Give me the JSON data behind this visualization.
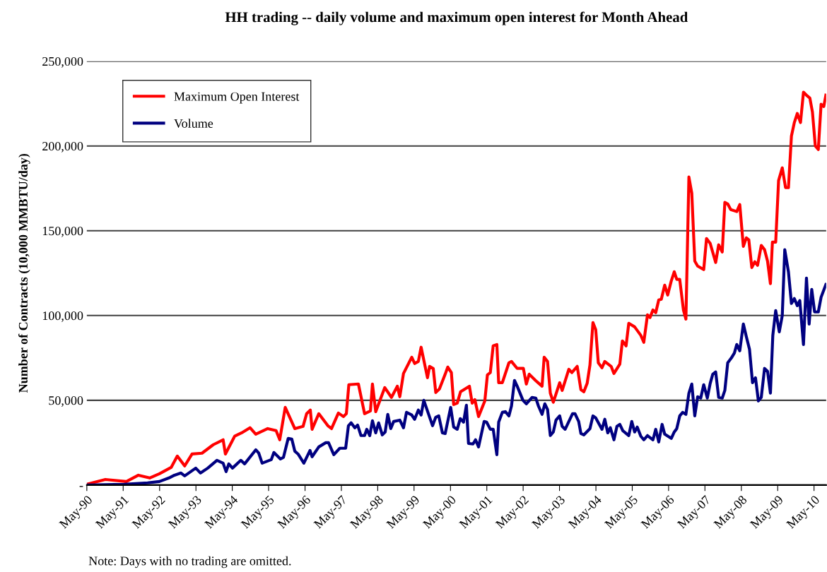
{
  "chart_data": {
    "type": "line",
    "title": "HH trading -- daily volume and maximum open interest for Month Ahead",
    "ylabel": "Number of Contracts (10,000 MMBTU/day)",
    "annotations": [
      "Note: Days with no trading are omitted."
    ],
    "xlim": [
      "1990-05-01",
      "2010-08-31"
    ],
    "ylim": [
      0,
      250000
    ],
    "xticks": [
      {
        "value": "1990-05-01",
        "label": "May-90"
      },
      {
        "value": "1991-05-01",
        "label": "May-91"
      },
      {
        "value": "1992-05-01",
        "label": "May-92"
      },
      {
        "value": "1993-05-01",
        "label": "May-93"
      },
      {
        "value": "1994-05-01",
        "label": "May-94"
      },
      {
        "value": "1995-05-01",
        "label": "May-95"
      },
      {
        "value": "1996-05-01",
        "label": "May-96"
      },
      {
        "value": "1997-05-01",
        "label": "May-97"
      },
      {
        "value": "1998-05-01",
        "label": "May-98"
      },
      {
        "value": "1999-05-01",
        "label": "May-99"
      },
      {
        "value": "2000-05-01",
        "label": "May-00"
      },
      {
        "value": "2001-05-01",
        "label": "May-01"
      },
      {
        "value": "2002-05-01",
        "label": "May-02"
      },
      {
        "value": "2003-05-01",
        "label": "May-03"
      },
      {
        "value": "2004-05-01",
        "label": "May-04"
      },
      {
        "value": "2005-05-01",
        "label": "May-05"
      },
      {
        "value": "2006-05-01",
        "label": "May-06"
      },
      {
        "value": "2007-05-01",
        "label": "May-07"
      },
      {
        "value": "2008-05-01",
        "label": "May-08"
      },
      {
        "value": "2009-05-01",
        "label": "May-09"
      },
      {
        "value": "2010-05-01",
        "label": "May-10"
      }
    ],
    "yticks": [
      {
        "value": 0,
        "label": "-"
      },
      {
        "value": 50000,
        "label": "50,000"
      },
      {
        "value": 100000,
        "label": "100,000"
      },
      {
        "value": 150000,
        "label": "150,000"
      },
      {
        "value": 200000,
        "label": "200,000"
      },
      {
        "value": 250000,
        "label": "250,000"
      }
    ],
    "grid": "y",
    "legend": "top left",
    "marker": "none",
    "line_style": "solid",
    "series": [
      {
        "name": "Maximum Open Interest",
        "color": "#ff0000",
        "x": [
          "1990-05-01",
          "1990-11-03",
          "1991-06-02",
          "1991-10-01",
          "1992-01-22",
          "1992-04-29",
          "1992-08-25",
          "1992-10-26",
          "1993-01-08",
          "1993-03-23",
          "1993-07-01",
          "1993-10-22",
          "1994-01-29",
          "1994-02-21",
          "1994-05-25",
          "1994-08-03",
          "1994-10-26",
          "1994-12-23",
          "1995-04-22",
          "1995-07-15",
          "1995-08-21",
          "1995-10-15",
          "1996-01-19",
          "1996-04-11",
          "1996-05-17",
          "1996-06-23",
          "1996-07-11",
          "1996-09-16",
          "1996-12-16",
          "1997-01-22",
          "1997-04-01",
          "1997-05-21",
          "1997-06-20",
          "1997-07-15",
          "1997-10-19",
          "1997-12-20",
          "1998-02-17",
          "1998-03-09",
          "1998-04-11",
          "1998-07-11",
          "1998-09-16",
          "1998-11-14",
          "1998-12-09",
          "1999-01-15",
          "1999-04-08",
          "1999-05-07",
          "1999-06-13",
          "1999-07-11",
          "1999-09-13",
          "1999-10-04",
          "1999-11-10",
          "1999-12-05",
          "2000-01-11",
          "2000-03-09",
          "2000-04-04",
          "2000-05-10",
          "2000-06-02",
          "2000-07-08",
          "2000-08-10",
          "2000-11-07",
          "2000-12-05",
          "2001-01-01",
          "2001-02-07",
          "2001-04-11",
          "2001-05-07",
          "2001-06-05",
          "2001-07-04",
          "2001-08-10",
          "2001-08-28",
          "2001-10-04",
          "2001-12-09",
          "2002-01-04",
          "2002-03-02",
          "2002-05-03",
          "2002-06-02",
          "2002-07-01",
          "2002-09-02",
          "2002-11-07",
          "2002-11-28",
          "2003-01-01",
          "2003-01-29",
          "2003-02-28",
          "2003-05-03",
          "2003-05-28",
          "2003-08-03",
          "2003-09-02",
          "2003-10-26",
          "2003-12-02",
          "2004-01-01",
          "2004-02-03",
          "2004-03-02",
          "2004-04-01",
          "2004-04-29",
          "2004-05-25",
          "2004-07-01",
          "2004-07-29",
          "2004-10-01",
          "2004-10-29",
          "2004-12-27",
          "2005-01-22",
          "2005-02-28",
          "2005-03-27",
          "2005-05-25",
          "2005-07-26",
          "2005-08-25",
          "2005-10-01",
          "2005-10-26",
          "2005-11-25",
          "2005-12-23",
          "2006-01-22",
          "2006-02-17",
          "2006-03-23",
          "2006-04-22",
          "2006-05-28",
          "2006-06-27",
          "2006-07-22",
          "2006-08-21",
          "2006-09-27",
          "2006-10-22",
          "2006-11-21",
          "2006-12-20",
          "2007-01-19",
          "2007-02-17",
          "2007-04-19",
          "2007-05-17",
          "2007-06-23",
          "2007-08-17",
          "2007-09-16",
          "2007-10-22",
          "2007-11-17",
          "2007-12-16",
          "2008-01-15",
          "2008-03-16",
          "2008-04-15",
          "2008-05-21",
          "2008-06-20",
          "2008-07-15",
          "2008-08-14",
          "2008-09-13",
          "2008-10-11",
          "2008-11-17",
          "2008-12-20",
          "2009-01-19",
          "2009-02-17",
          "2009-03-09",
          "2009-04-11",
          "2009-05-10",
          "2009-06-16",
          "2009-07-19",
          "2009-08-17",
          "2009-09-16",
          "2009-10-15",
          "2009-11-14",
          "2009-12-16",
          "2010-01-15",
          "2010-02-21",
          "2010-03-20",
          "2010-04-15",
          "2010-05-14",
          "2010-06-13",
          "2010-07-11",
          "2010-08-07",
          "2010-08-28"
        ],
        "values": [
          500,
          3300,
          2100,
          5800,
          4200,
          6700,
          10400,
          17100,
          11300,
          18300,
          18800,
          23800,
          26700,
          18300,
          28800,
          30800,
          33800,
          30000,
          33300,
          32100,
          26700,
          45800,
          33300,
          34600,
          42100,
          44200,
          32900,
          42100,
          35000,
          33300,
          42500,
          40400,
          42100,
          59200,
          59600,
          42100,
          43700,
          59600,
          43300,
          57500,
          51700,
          58300,
          52100,
          65800,
          75400,
          71700,
          72900,
          81300,
          63300,
          70000,
          68800,
          54600,
          56700,
          65400,
          69600,
          66300,
          47500,
          48300,
          55000,
          58300,
          48300,
          50400,
          40400,
          49600,
          65000,
          66300,
          82100,
          82900,
          60400,
          60400,
          72100,
          72900,
          68800,
          68800,
          59600,
          65400,
          61700,
          58300,
          75400,
          72900,
          54200,
          48800,
          60400,
          55800,
          68300,
          66300,
          70000,
          56300,
          55000,
          60000,
          70800,
          95800,
          91700,
          72100,
          69200,
          72900,
          70000,
          65800,
          71300,
          85000,
          82100,
          95400,
          93300,
          88300,
          84200,
          100400,
          98800,
          103300,
          101700,
          109200,
          109600,
          117900,
          112100,
          120400,
          125800,
          121300,
          121300,
          103300,
          97900,
          181700,
          172100,
          132100,
          129200,
          127100,
          145400,
          142500,
          131300,
          141700,
          137500,
          166700,
          165800,
          162500,
          161300,
          165400,
          140800,
          145800,
          144600,
          128300,
          131700,
          129600,
          141300,
          138800,
          132100,
          118800,
          143300,
          143300,
          179600,
          187100,
          175400,
          175400,
          205800,
          213800,
          219200,
          213800,
          231700,
          229600,
          228300,
          220000,
          200000,
          197900,
          224600,
          223300,
          230000
        ]
      },
      {
        "name": "Volume",
        "color": "#000080",
        "x": [
          "1990-05-01",
          "1991-05-10",
          "1992-01-01",
          "1992-04-29",
          "1992-08-03",
          "1992-09-27",
          "1992-12-02",
          "1993-01-08",
          "1993-04-29",
          "1993-06-16",
          "1993-08-28",
          "1993-11-28",
          "1994-01-29",
          "1994-02-28",
          "1994-03-27",
          "1994-05-03",
          "1994-07-26",
          "1994-09-02",
          "1994-12-23",
          "1995-01-22",
          "1995-02-25",
          "1995-05-28",
          "1995-06-23",
          "1995-08-28",
          "1995-09-27",
          "1995-11-14",
          "1995-12-20",
          "1996-01-19",
          "1996-02-21",
          "1996-04-19",
          "1996-06-20",
          "1996-07-11",
          "1996-09-16",
          "1996-11-25",
          "1996-12-23",
          "1997-02-14",
          "1997-04-15",
          "1997-06-13",
          "1997-07-11",
          "1997-08-07",
          "1997-09-13",
          "1997-10-11",
          "1997-11-14",
          "1997-12-20",
          "1998-01-11",
          "1998-02-10",
          "1998-03-09",
          "1998-04-11",
          "1998-05-10",
          "1998-06-16",
          "1998-07-15",
          "1998-08-10",
          "1998-09-09",
          "1998-10-08",
          "1998-12-09",
          "1999-01-15",
          "1999-02-14",
          "1999-04-08",
          "1999-05-07",
          "1999-06-13",
          "1999-07-11",
          "1999-08-07",
          "1999-11-03",
          "1999-12-05",
          "2000-01-04",
          "2000-02-10",
          "2000-03-09",
          "2000-05-03",
          "2000-06-02",
          "2000-07-08",
          "2000-08-07",
          "2000-09-09",
          "2000-10-08",
          "2000-10-29",
          "2000-12-13",
          "2001-01-08",
          "2001-02-07",
          "2001-04-04",
          "2001-04-29",
          "2001-06-05",
          "2001-07-04",
          "2001-08-10",
          "2001-08-28",
          "2001-10-04",
          "2001-11-03",
          "2001-12-09",
          "2002-01-04",
          "2002-02-03",
          "2002-03-02",
          "2002-04-29",
          "2002-06-02",
          "2002-07-29",
          "2002-09-05",
          "2002-10-01",
          "2002-11-07",
          "2002-12-05",
          "2003-01-01",
          "2003-01-29",
          "2003-02-28",
          "2003-03-27",
          "2003-05-03",
          "2003-05-28",
          "2003-06-27",
          "2003-08-03",
          "2003-09-09",
          "2003-10-04",
          "2003-11-10",
          "2003-12-02",
          "2004-01-01",
          "2004-03-02",
          "2004-04-01",
          "2004-04-29",
          "2004-07-01",
          "2004-07-29",
          "2004-08-28",
          "2004-09-23",
          "2004-10-29",
          "2004-11-28",
          "2004-12-27",
          "2005-01-26",
          "2005-03-27",
          "2005-04-26",
          "2005-05-25",
          "2005-06-20",
          "2005-07-26",
          "2005-08-25",
          "2005-10-01",
          "2005-11-25",
          "2005-12-23",
          "2006-01-22",
          "2006-02-25",
          "2006-03-23",
          "2006-05-28",
          "2006-06-27",
          "2006-07-22",
          "2006-08-21",
          "2006-09-20",
          "2006-10-22",
          "2006-11-21",
          "2006-12-20",
          "2007-01-19",
          "2007-02-17",
          "2007-03-20",
          "2007-04-19",
          "2007-05-25",
          "2007-06-23",
          "2007-07-19",
          "2007-08-17",
          "2007-09-16",
          "2007-10-22",
          "2007-11-17",
          "2007-12-16",
          "2008-01-22",
          "2008-02-21",
          "2008-03-16",
          "2008-04-15",
          "2008-05-21",
          "2008-06-20",
          "2008-07-22",
          "2008-08-21",
          "2008-09-20",
          "2008-10-19",
          "2008-11-17",
          "2008-12-20",
          "2009-01-19",
          "2009-02-17",
          "2009-03-13",
          "2009-04-11",
          "2009-05-17",
          "2009-06-16",
          "2009-07-11",
          "2009-08-17",
          "2009-09-16",
          "2009-10-15",
          "2009-11-14",
          "2009-12-09",
          "2010-01-15",
          "2010-02-14",
          "2010-03-13",
          "2010-04-08",
          "2010-05-07",
          "2010-06-13",
          "2010-07-11",
          "2010-08-28"
        ],
        "values": [
          0,
          400,
          1300,
          2100,
          4200,
          5800,
          7100,
          5400,
          10000,
          7100,
          10000,
          14600,
          12900,
          7900,
          12500,
          10000,
          14600,
          12500,
          20800,
          18800,
          12900,
          15000,
          19200,
          15400,
          16300,
          27500,
          27100,
          20000,
          18300,
          12900,
          20400,
          16700,
          22500,
          25000,
          25000,
          17900,
          21700,
          21700,
          35000,
          36700,
          33800,
          35400,
          29200,
          29200,
          32900,
          29200,
          37900,
          30800,
          36700,
          29600,
          31300,
          41700,
          33300,
          37500,
          38300,
          33800,
          42900,
          41300,
          38800,
          44200,
          41300,
          50000,
          35000,
          40000,
          40800,
          30800,
          30400,
          45800,
          34200,
          32900,
          39200,
          37100,
          47100,
          24600,
          24200,
          26700,
          22500,
          37500,
          37100,
          32900,
          32900,
          17900,
          37100,
          42900,
          43300,
          40800,
          46700,
          61700,
          58300,
          50000,
          47900,
          51700,
          51300,
          46700,
          41700,
          47900,
          44600,
          29200,
          31300,
          38300,
          40800,
          34600,
          32900,
          37500,
          42100,
          42100,
          37500,
          30400,
          29600,
          33300,
          40800,
          39600,
          32900,
          38800,
          30800,
          33800,
          26700,
          34600,
          35800,
          32100,
          29200,
          37500,
          31300,
          34200,
          28800,
          26700,
          29200,
          26700,
          32900,
          25400,
          35800,
          30000,
          27500,
          31300,
          33300,
          40800,
          42900,
          41700,
          54200,
          59600,
          40800,
          52100,
          51300,
          59200,
          51300,
          60000,
          65400,
          66700,
          51700,
          51300,
          55800,
          72100,
          75000,
          77900,
          82900,
          79200,
          95000,
          87500,
          80000,
          60400,
          63300,
          49600,
          51700,
          68800,
          67100,
          54200,
          88300,
          102900,
          90400,
          100000,
          138800,
          125800,
          107100,
          110000,
          105800,
          108800,
          82900,
          122100,
          95000,
          115400,
          102100,
          102100,
          110800,
          118300
        ]
      }
    ]
  }
}
